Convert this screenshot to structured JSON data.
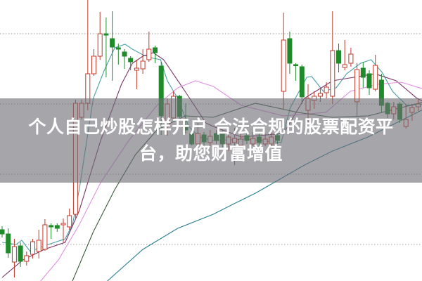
{
  "overlay": {
    "title": "个人自己炒股怎样开户 合法合规的股票配资平台，助您财富增值",
    "background": "#6e6e76"
  },
  "chart_data": {
    "type": "candlestick",
    "title": "",
    "xlabel": "",
    "ylabel": "",
    "ylim": [
      7.4,
      27.4
    ],
    "grid": {
      "horizontal": true,
      "style": "dotted",
      "levels": [
        10,
        15,
        20,
        25
      ]
    },
    "colors": {
      "up": "#c0392b",
      "down": "#1f8a2a",
      "grid": "#9a9a9a"
    },
    "candles": [
      [
        11.05,
        11.3,
        10.5,
        10.75
      ],
      [
        10.75,
        11.15,
        9.05,
        9.4
      ],
      [
        8.75,
        10.4,
        7.65,
        9.85
      ],
      [
        9.9,
        10.15,
        8.4,
        8.8
      ],
      [
        8.8,
        9.5,
        8.5,
        9.2
      ],
      [
        9.3,
        10.4,
        9.0,
        10.2
      ],
      [
        9.5,
        11.05,
        9.0,
        10.3
      ],
      [
        9.65,
        11.8,
        9.55,
        11.4
      ],
      [
        11.35,
        11.5,
        10.4,
        11.25
      ],
      [
        11.35,
        11.5,
        10.9,
        11.15
      ],
      [
        11.4,
        11.85,
        10.15,
        11.5
      ],
      [
        11.25,
        12.55,
        11.05,
        12.05
      ],
      [
        12.15,
        20.3,
        11.9,
        20.05
      ],
      [
        19.05,
        20.3,
        18.9,
        20.05
      ],
      [
        20.05,
        27.4,
        19.55,
        22.15
      ],
      [
        22.15,
        23.9,
        22.0,
        23.4
      ],
      [
        23.4,
        26.55,
        23.15,
        25.0
      ],
      [
        25.0,
        26.15,
        21.9,
        24.9
      ],
      [
        24.65,
        26.6,
        21.65,
        24.05
      ],
      [
        24.0,
        24.3,
        22.8,
        23.9
      ],
      [
        23.7,
        23.9,
        22.5,
        23.4
      ],
      [
        23.25,
        23.4,
        22.4,
        23.0
      ],
      [
        22.4,
        23.15,
        21.05,
        22.55
      ],
      [
        22.5,
        23.9,
        22.15,
        23.05
      ],
      [
        23.15,
        25.15,
        23.0,
        23.9
      ],
      [
        24.0,
        24.15,
        22.9,
        23.65
      ],
      [
        22.7,
        23.0,
        17.8,
        19.15
      ],
      [
        18.4,
        20.4,
        17.75,
        20.0
      ],
      [
        19.0,
        20.9,
        18.9,
        20.55
      ],
      [
        20.55,
        20.65,
        19.0,
        19.1
      ],
      [
        18.4,
        20.05,
        17.9,
        18.15
      ],
      [
        17.9,
        18.15,
        17.05,
        17.15
      ],
      [
        17.15,
        18.65,
        16.9,
        17.9
      ],
      [
        17.8,
        18.0,
        17.0,
        17.3
      ],
      [
        17.25,
        18.15,
        17.0,
        17.7
      ],
      [
        17.9,
        18.15,
        17.15,
        17.4
      ],
      [
        18.0,
        18.15,
        16.9,
        17.15
      ],
      [
        17.15,
        18.4,
        16.65,
        17.65
      ],
      [
        17.25,
        18.3,
        15.65,
        17.55
      ],
      [
        17.05,
        18.15,
        16.8,
        17.5
      ],
      [
        17.75,
        17.9,
        17.15,
        17.4
      ],
      [
        17.15,
        18.0,
        17.0,
        17.55
      ],
      [
        17.65,
        17.9,
        16.9,
        17.25
      ],
      [
        17.15,
        17.9,
        17.0,
        17.5
      ],
      [
        17.15,
        18.25,
        16.9,
        17.65
      ],
      [
        17.75,
        18.0,
        17.15,
        17.4
      ],
      [
        20.9,
        26.5,
        19.65,
        24.55
      ],
      [
        24.65,
        25.15,
        22.15,
        22.9
      ],
      [
        22.8,
        22.9,
        21.65,
        22.75
      ],
      [
        22.65,
        22.8,
        20.0,
        20.5
      ],
      [
        19.55,
        21.4,
        18.65,
        20.4
      ],
      [
        20.25,
        20.9,
        19.65,
        20.55
      ],
      [
        20.55,
        21.15,
        20.15,
        20.75
      ],
      [
        20.8,
        21.55,
        20.4,
        21.2
      ],
      [
        20.55,
        26.6,
        20.0,
        23.8
      ],
      [
        23.8,
        24.3,
        22.25,
        22.9
      ],
      [
        22.6,
        24.55,
        22.4,
        22.8
      ],
      [
        22.9,
        24.0,
        22.65,
        23.55
      ],
      [
        20.15,
        22.9,
        19.15,
        22.45
      ],
      [
        22.55,
        23.0,
        21.15,
        21.9
      ],
      [
        22.15,
        22.4,
        20.65,
        21.15
      ],
      [
        21.05,
        23.5,
        20.9,
        22.75
      ],
      [
        21.7,
        22.15,
        19.4,
        19.9
      ],
      [
        20.05,
        20.15,
        19.0,
        19.3
      ],
      [
        19.3,
        20.15,
        18.9,
        19.8
      ],
      [
        20.0,
        20.15,
        18.65,
        18.9
      ],
      [
        18.4,
        20.0,
        18.25,
        18.9
      ],
      [
        19.4,
        20.0,
        18.8,
        19.75
      ],
      [
        19.8,
        20.4,
        19.5,
        20.0
      ]
    ],
    "candle_fields": [
      "open",
      "high",
      "low",
      "close"
    ],
    "moving_averages": [
      {
        "color": "#4aa0a8",
        "points": [
          [
            0,
            10.15
          ],
          [
            2.3,
            10.0
          ],
          [
            3.2,
            10.3
          ],
          [
            4.6,
            9.5
          ],
          [
            6.9,
            9.9
          ],
          [
            10.3,
            10.4
          ],
          [
            11.5,
            11.4
          ],
          [
            12.6,
            13.9
          ],
          [
            14.9,
            20.4
          ],
          [
            16.7,
            22.4
          ],
          [
            18.4,
            24.0
          ],
          [
            20.1,
            24.25
          ],
          [
            21.3,
            23.9
          ],
          [
            23,
            23.5
          ],
          [
            24.7,
            23.25
          ],
          [
            25.9,
            23.15
          ],
          [
            27,
            21.65
          ],
          [
            28.7,
            20.4
          ],
          [
            30.5,
            18.4
          ],
          [
            32.2,
            17.65
          ],
          [
            34.5,
            17.4
          ],
          [
            40,
            17.5
          ],
          [
            45.6,
            17.25
          ],
          [
            47.1,
            19.75
          ],
          [
            49.8,
            21.9
          ],
          [
            50.6,
            21.95
          ],
          [
            52.5,
            20.9
          ],
          [
            54.6,
            21.15
          ],
          [
            56.3,
            22.15
          ],
          [
            58.6,
            22.9
          ],
          [
            60.3,
            23.15
          ],
          [
            62.1,
            22.25
          ],
          [
            63.8,
            20.9
          ],
          [
            66.1,
            19.9
          ],
          [
            69,
            20.0
          ]
        ]
      },
      {
        "color": "#7a3468",
        "points": [
          [
            0,
            7.65
          ],
          [
            3.4,
            8.9
          ],
          [
            6.9,
            9.65
          ],
          [
            10.3,
            10.15
          ],
          [
            12.6,
            12.4
          ],
          [
            16.1,
            17.4
          ],
          [
            19.5,
            21.4
          ],
          [
            21.3,
            22.9
          ],
          [
            23,
            23.4
          ],
          [
            24.7,
            23.65
          ],
          [
            26.4,
            23.15
          ],
          [
            29.9,
            20.9
          ],
          [
            33.3,
            18.65
          ],
          [
            34.5,
            18.4
          ],
          [
            39.1,
            17.65
          ],
          [
            46,
            17.9
          ],
          [
            49.4,
            20.4
          ],
          [
            54,
            21.65
          ],
          [
            57.5,
            21.9
          ],
          [
            60.9,
            22.15
          ],
          [
            64.4,
            21.65
          ],
          [
            67.8,
            20.4
          ],
          [
            69,
            20.15
          ]
        ]
      },
      {
        "color": "#e090e0",
        "points": [
          [
            6.3,
            7.4
          ],
          [
            9.2,
            8.9
          ],
          [
            12.6,
            11.4
          ],
          [
            16.1,
            14.4
          ],
          [
            20.7,
            17.4
          ],
          [
            25.3,
            19.9
          ],
          [
            28.7,
            21.15
          ],
          [
            31.6,
            21.65
          ],
          [
            34.5,
            21.25
          ],
          [
            39.1,
            19.9
          ],
          [
            46,
            19.15
          ],
          [
            52.9,
            19.4
          ],
          [
            56.9,
            20.9
          ],
          [
            61.3,
            21.4
          ],
          [
            65.2,
            21.55
          ],
          [
            69,
            21.05
          ]
        ]
      },
      {
        "color": "#3a5a3a",
        "points": [
          [
            11.5,
            7.4
          ],
          [
            14.9,
            10.9
          ],
          [
            18.4,
            13.9
          ],
          [
            21.8,
            16.4
          ],
          [
            25.3,
            18.15
          ],
          [
            29.9,
            19.15
          ],
          [
            34.5,
            19.05
          ],
          [
            41.4,
            20.05
          ],
          [
            48.3,
            19.4
          ],
          [
            54,
            19.05
          ],
          [
            59.8,
            19.15
          ],
          [
            64.4,
            19.65
          ],
          [
            69,
            20.15
          ]
        ]
      },
      {
        "color": "#2a8090",
        "points": [
          [
            17.2,
            7.4
          ],
          [
            23,
            9.65
          ],
          [
            28.7,
            11.15
          ],
          [
            34.5,
            12.15
          ],
          [
            37.9,
            12.9
          ],
          [
            41.4,
            13.65
          ],
          [
            45.4,
            14.65
          ],
          [
            49.4,
            15.65
          ],
          [
            54,
            16.65
          ],
          [
            59.8,
            17.65
          ],
          [
            64.4,
            18.65
          ],
          [
            69,
            19.65
          ]
        ]
      }
    ]
  }
}
